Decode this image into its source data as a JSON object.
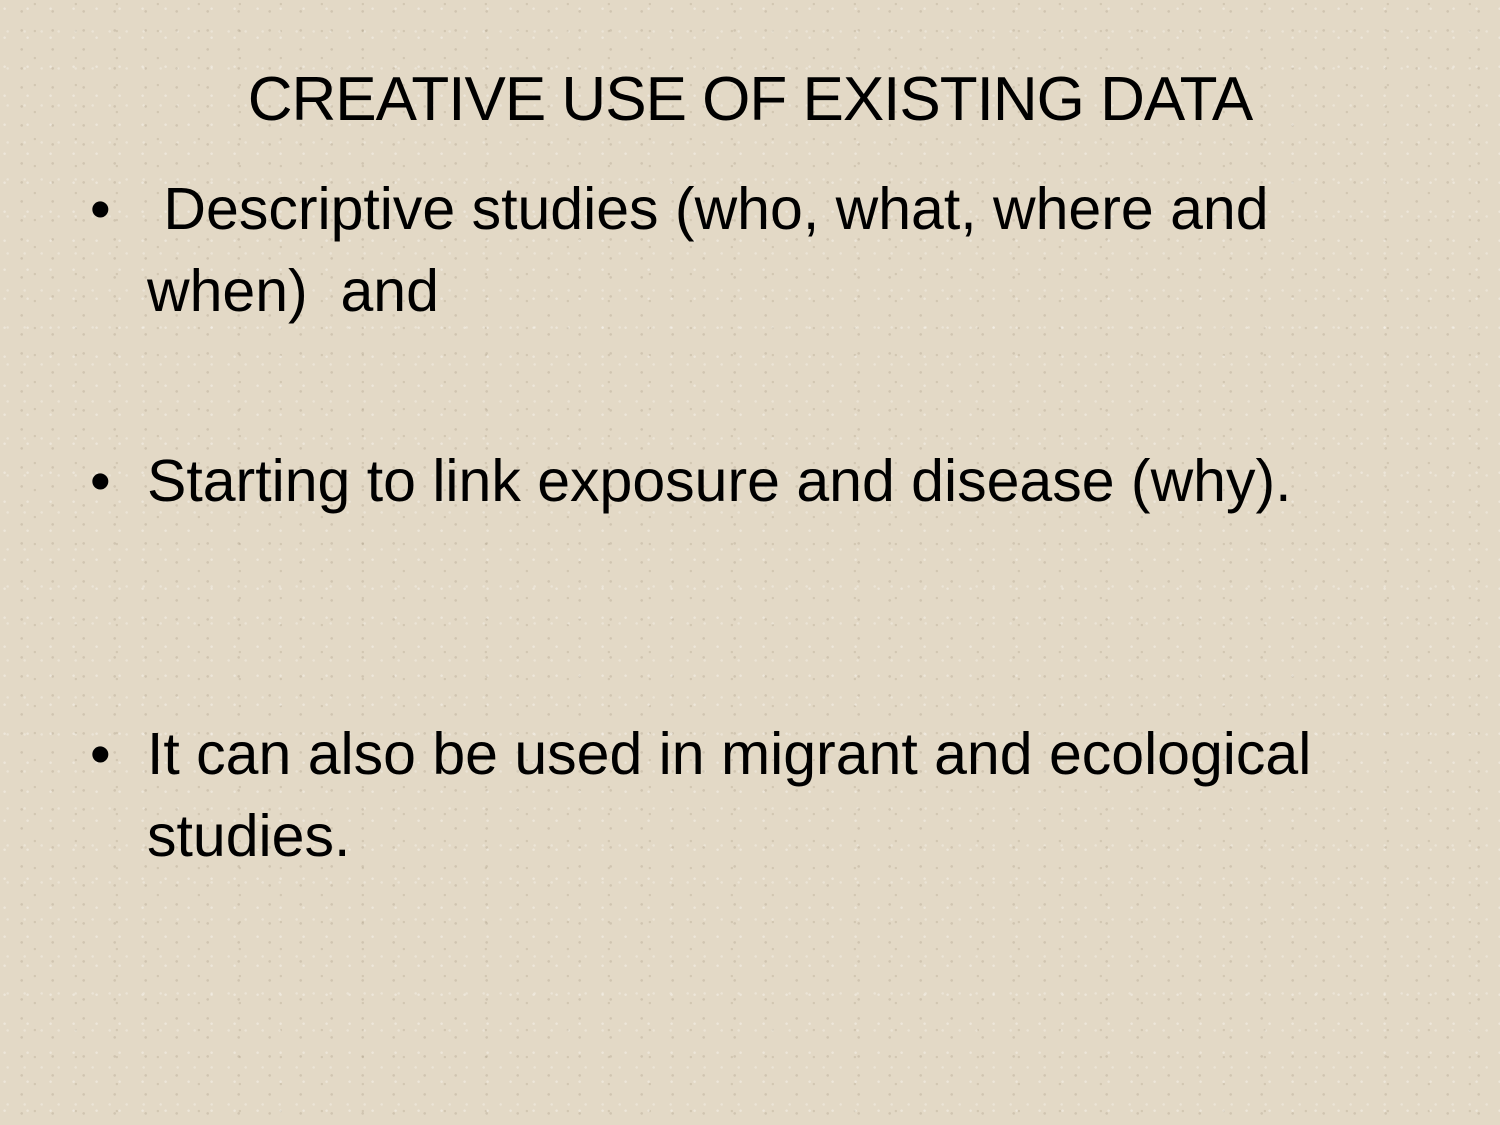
{
  "slide": {
    "title": "CREATIVE USE OF EXISTING DATA",
    "bullet_symbol": "•",
    "bullets": [
      " Descriptive studies (who, what, where and when)  and",
      "Starting to link exposure and disease (why).",
      "It can also be used in migrant and ecological studies."
    ]
  },
  "colors": {
    "background": "#e3d9c6",
    "text": "#000000"
  }
}
